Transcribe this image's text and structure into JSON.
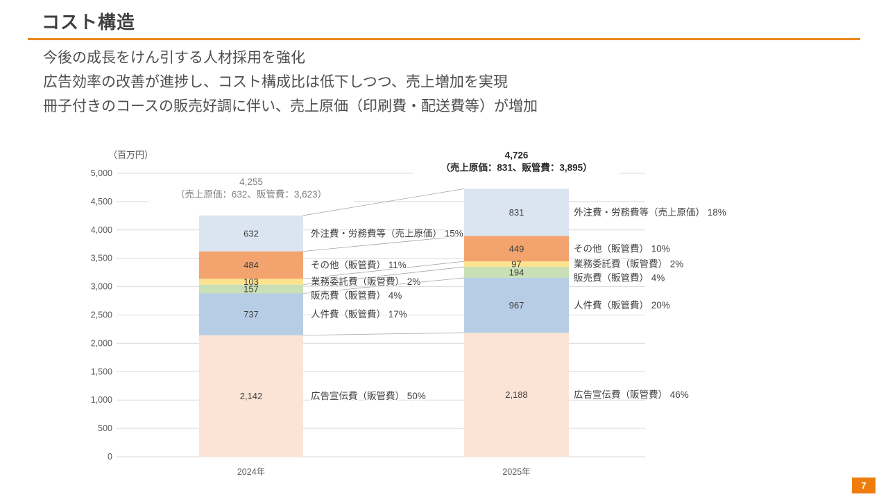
{
  "header": {
    "title": "コスト構造"
  },
  "description": {
    "lines": [
      "今後の成長をけん引する人材採用を強化",
      "広告効率の改善が進捗し、コスト構成比は低下しつつ、売上増加を実現",
      "冊子付きのコースの販売好調に伴い、売上原価（印刷費・配送費等）が増加"
    ]
  },
  "chart_data": {
    "type": "bar",
    "subtype": "stacked",
    "unit_label": "（百万円）",
    "categories": [
      "2024年",
      "2025年"
    ],
    "ylim": [
      0,
      5000
    ],
    "ytick_interval": 500,
    "grid": true,
    "series": [
      {
        "name": "広告宣伝費（販管費）",
        "color": "#fbe4d5",
        "values": [
          2142,
          2188
        ],
        "pct": [
          "50%",
          "46%"
        ]
      },
      {
        "name": "人件費（販管費）",
        "color": "#b7cde5",
        "values": [
          737,
          967
        ],
        "pct": [
          "17%",
          "20%"
        ]
      },
      {
        "name": "販売費（販管費）",
        "color": "#c9dfb6",
        "values": [
          157,
          194
        ],
        "pct": [
          "4%",
          "4%"
        ]
      },
      {
        "name": "業務委託費（販管費）",
        "color": "#fbe38f",
        "values": [
          103,
          97
        ],
        "pct": [
          "2%",
          "2%"
        ]
      },
      {
        "name": "その他（販管費）",
        "color": "#f3a36d",
        "values": [
          484,
          449
        ],
        "pct": [
          "11%",
          "10%"
        ]
      },
      {
        "name": "外注費・労務費等（売上原価）",
        "color": "#dbe5f1",
        "values": [
          632,
          831
        ],
        "pct": [
          "15%",
          "18%"
        ]
      }
    ],
    "totals": [
      {
        "label": "4,255",
        "sub": "（売上原価：632、販管費：3,623）",
        "bold": false
      },
      {
        "label": "4,726",
        "sub": "（売上原価：831、販管費：3,895）",
        "bold": true
      }
    ]
  },
  "colors": {
    "accent_orange": "#e8891d",
    "page_box_orange": "#ee7d0e",
    "grid": "#d9d9d9",
    "connector": "#a6a6a6"
  },
  "footer": {
    "page_number": "7"
  }
}
